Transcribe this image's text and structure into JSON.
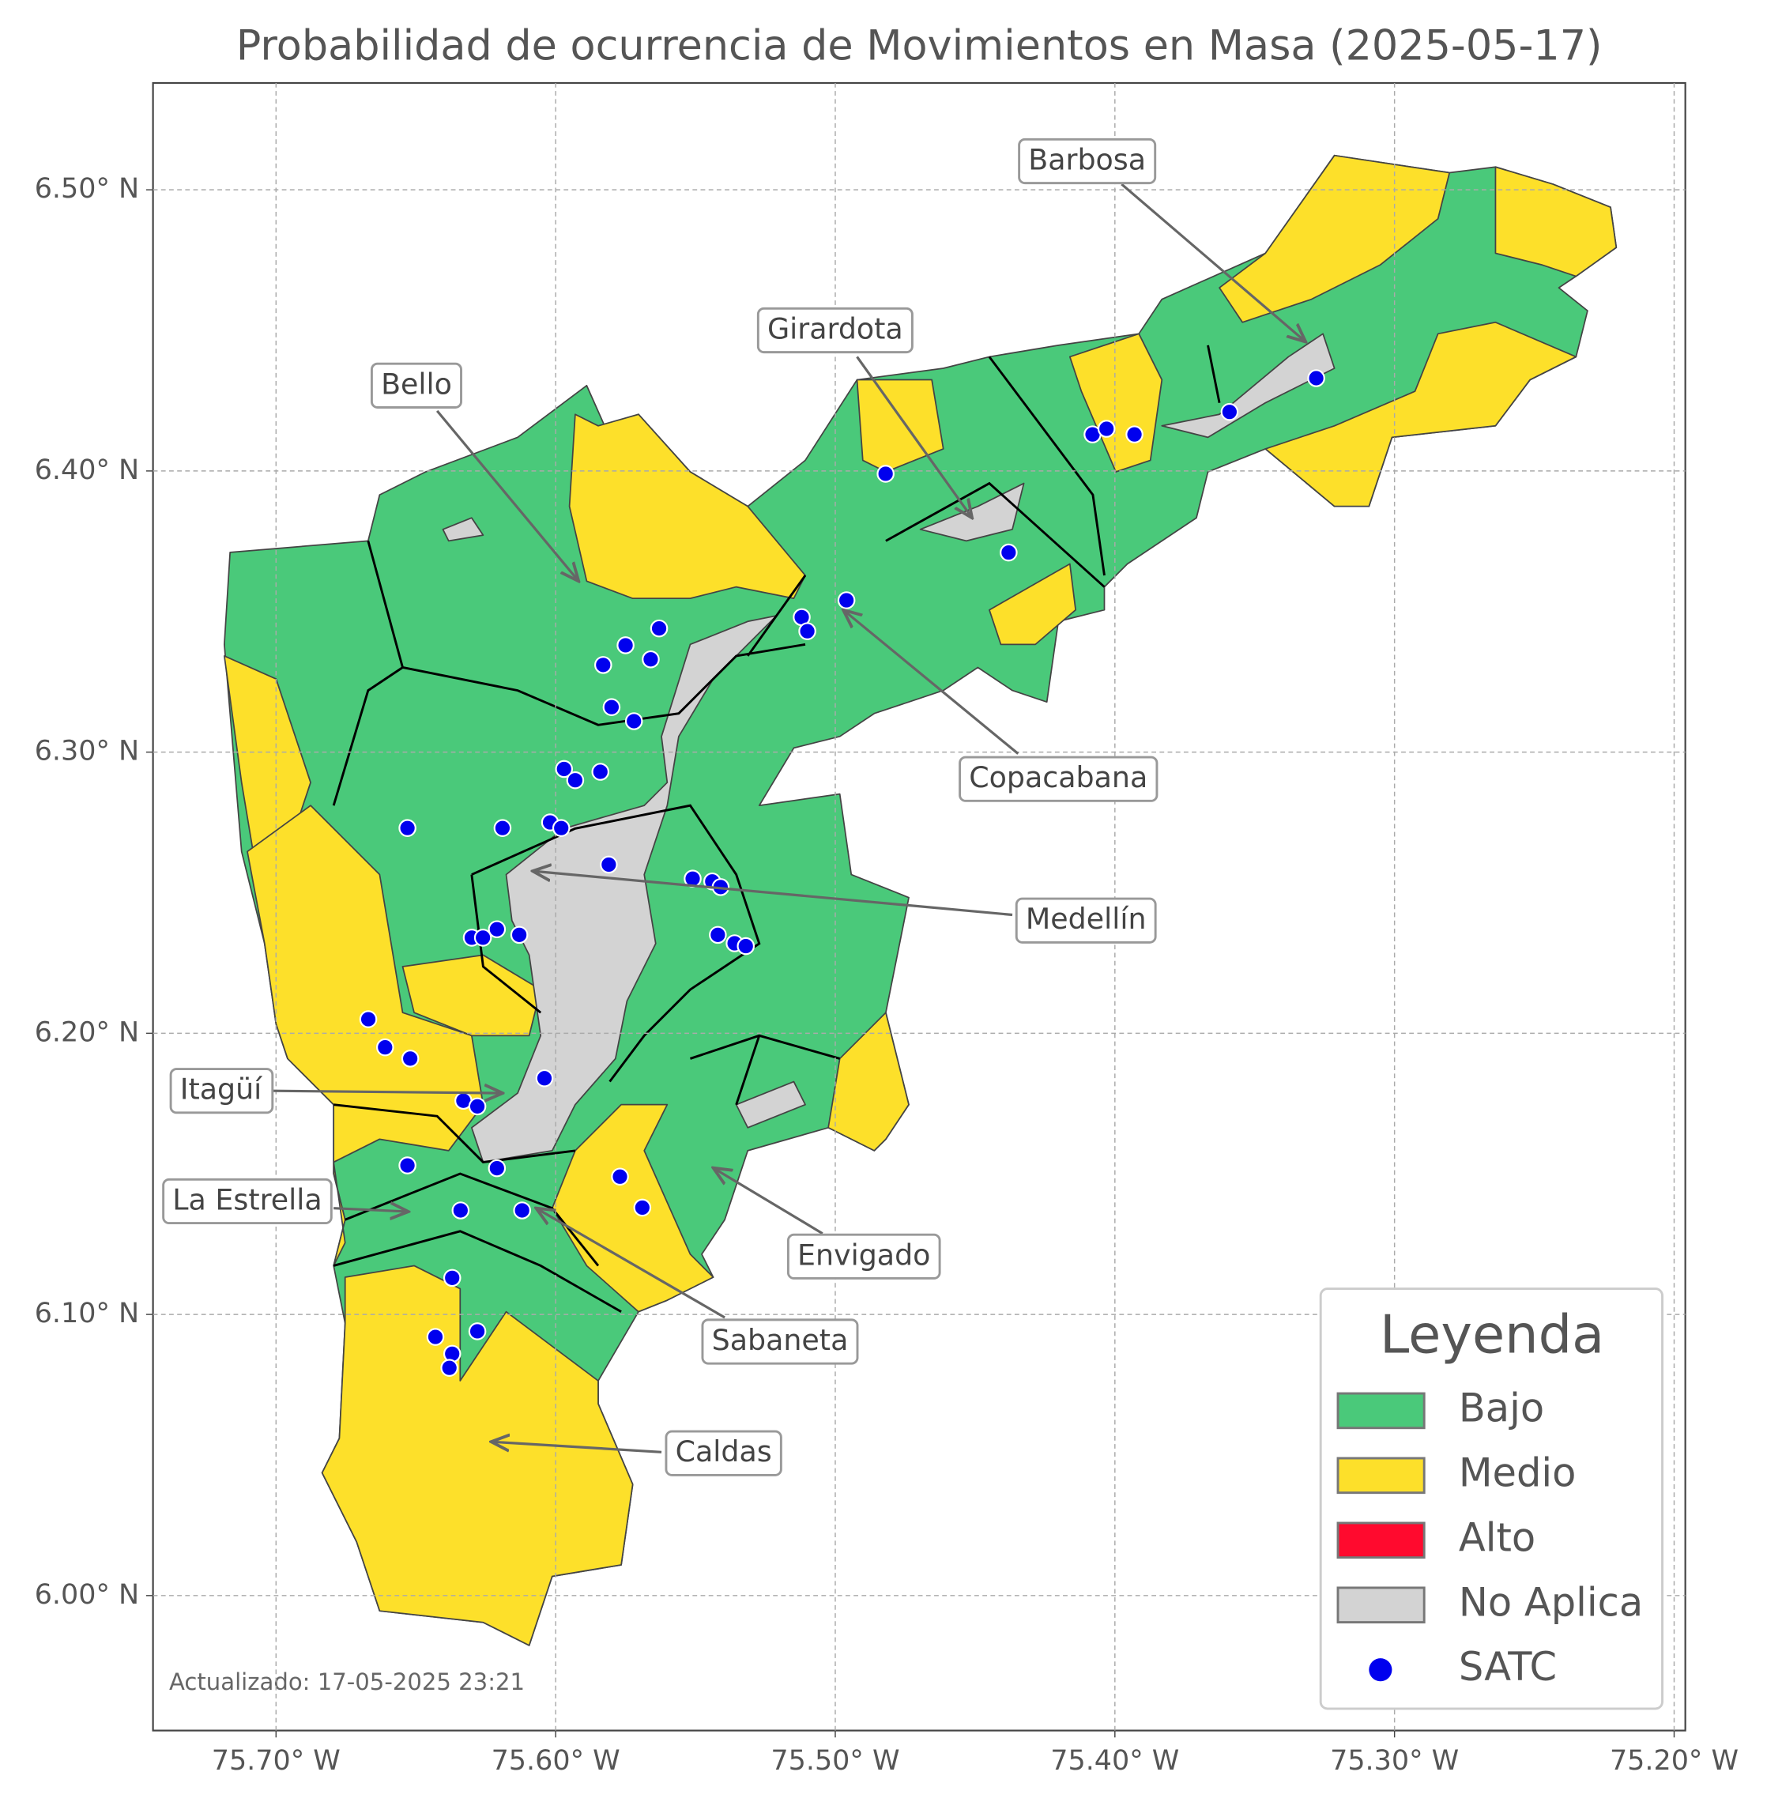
{
  "map": {
    "title": "Probabilidad de ocurrencia de Movimientos en Masa (2025-05-17)",
    "xlim": [
      -75.744,
      -75.196
    ],
    "xticks": [
      {
        "value": -75.7,
        "label": "75.70° W"
      },
      {
        "value": -75.6,
        "label": "75.60° W"
      },
      {
        "value": -75.5,
        "label": "75.50° W"
      },
      {
        "value": -75.4,
        "label": "75.40° W"
      },
      {
        "value": -75.3,
        "label": "75.30° W"
      },
      {
        "value": -75.2,
        "label": "75.20° W"
      }
    ],
    "ylim": [
      5.952,
      6.538
    ],
    "yticks": [
      {
        "value": 6.0,
        "label": "6.00° N"
      },
      {
        "value": 6.1,
        "label": "6.10° N"
      },
      {
        "value": 6.2,
        "label": "6.20° N"
      },
      {
        "value": 6.3,
        "label": "6.30° N"
      },
      {
        "value": 6.4,
        "label": "6.40° N"
      },
      {
        "value": 6.5,
        "label": "6.50° N"
      }
    ],
    "grid": true,
    "annotations": [
      "Barbosa",
      "Girardota",
      "Bello",
      "Copacabana",
      "Medellín",
      "Itagüí",
      "La Estrella",
      "Envigado",
      "Sabaneta",
      "Caldas"
    ],
    "legend": {
      "title": "Leyenda",
      "position": "lower right",
      "entries": [
        {
          "label": "Bajo",
          "color": "#4ac97a"
        },
        {
          "label": "Medio",
          "color": "#fde02a"
        },
        {
          "label": "Alto",
          "color": "#ff0a2e"
        },
        {
          "label": "No Aplica",
          "color": "#d3d3d3"
        },
        {
          "label": "SATC",
          "color": "#0000ee"
        }
      ]
    },
    "satc": {
      "lon": [
        -75.482,
        -75.408,
        -75.403,
        -75.393,
        -75.359,
        -75.328,
        -75.438,
        -75.496,
        -75.512,
        -75.51,
        -75.563,
        -75.575,
        -75.566,
        -75.583,
        -75.58,
        -75.572,
        -75.597,
        -75.584,
        -75.593,
        -75.653,
        -75.619,
        -75.602,
        -75.598,
        -75.581,
        -75.551,
        -75.544,
        -75.541,
        -75.542,
        -75.536,
        -75.532,
        -75.63,
        -75.626,
        -75.621,
        -75.613,
        -75.667,
        -75.661,
        -75.652,
        -75.604,
        -75.633,
        -75.628,
        -75.653,
        -75.621,
        -75.577,
        -75.569,
        -75.634,
        -75.612,
        -75.637,
        -75.643,
        -75.637,
        -75.638,
        -75.628
      ],
      "lat": [
        6.399,
        6.413,
        6.415,
        6.413,
        6.421,
        6.433,
        6.371,
        6.354,
        6.348,
        6.343,
        6.344,
        6.338,
        6.333,
        6.331,
        6.316,
        6.311,
        6.294,
        6.293,
        6.29,
        6.273,
        6.273,
        6.275,
        6.273,
        6.26,
        6.255,
        6.254,
        6.252,
        6.235,
        6.232,
        6.231,
        6.234,
        6.234,
        6.237,
        6.235,
        6.205,
        6.195,
        6.191,
        6.184,
        6.176,
        6.174,
        6.153,
        6.152,
        6.149,
        6.138,
        6.137,
        6.137,
        6.113,
        6.092,
        6.086,
        6.081,
        6.094
      ]
    },
    "note": "Actualizado: 17-05-2025 23:21"
  }
}
